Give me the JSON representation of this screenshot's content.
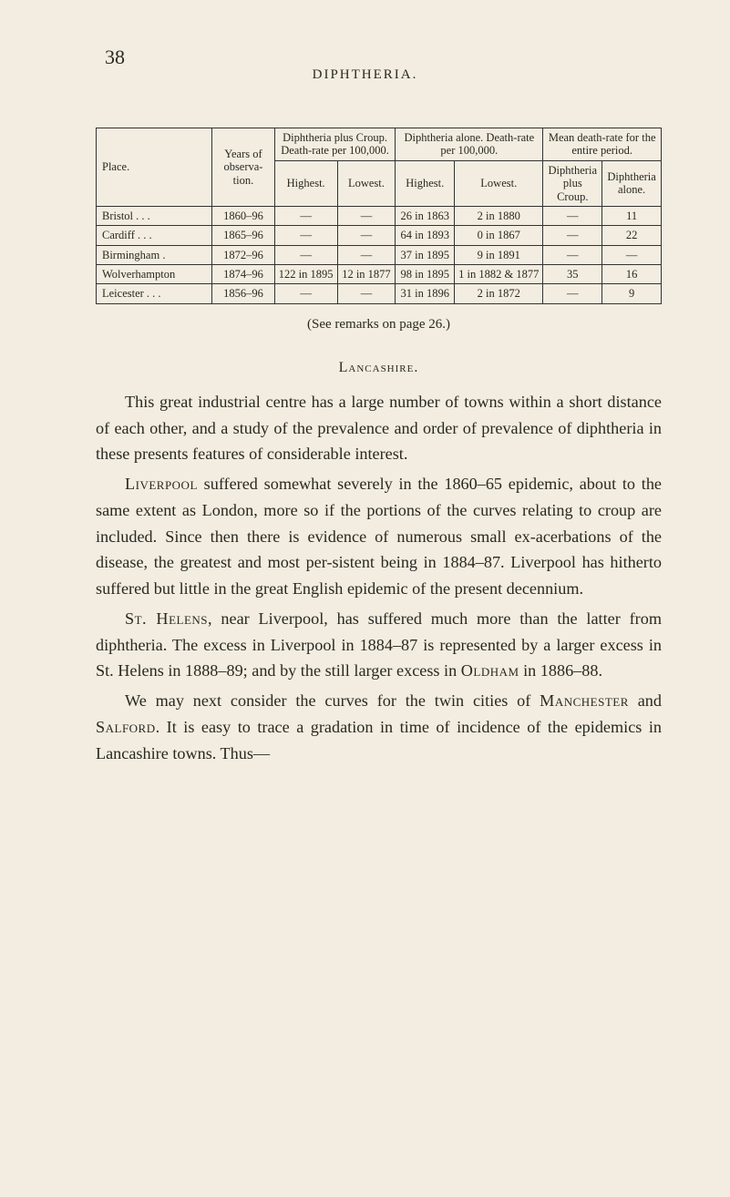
{
  "page_number": "38",
  "running_head": "DIPHTHERIA.",
  "table": {
    "headers": {
      "place": "Place.",
      "years": "Years of observa-tion.",
      "group_a": "Diphtheria plus Croup. Death-rate per 100,000.",
      "group_b": "Diphtheria alone. Death-rate per 100,000.",
      "group_c": "Mean death-rate for the entire period.",
      "highest": "Highest.",
      "lowest": "Lowest.",
      "c1": "Diphtheria plus Croup.",
      "c2": "Diphtheria alone."
    },
    "rows": [
      {
        "place": "Bristol . . .",
        "years": "1860–96",
        "a_hi": "—",
        "a_lo": "—",
        "b_hi": "26 in 1863",
        "b_lo": "2 in 1880",
        "c1": "—",
        "c2": "11"
      },
      {
        "place": "Cardiff . . .",
        "years": "1865–96",
        "a_hi": "—",
        "a_lo": "—",
        "b_hi": "64 in 1893",
        "b_lo": "0 in 1867",
        "c1": "—",
        "c2": "22"
      },
      {
        "place": "Birmingham .",
        "years": "1872–96",
        "a_hi": "—",
        "a_lo": "—",
        "b_hi": "37 in 1895",
        "b_lo": "9 in 1891",
        "c1": "—",
        "c2": "—"
      },
      {
        "place": "Wolverhampton",
        "years": "1874–96",
        "a_hi": "122 in 1895",
        "a_lo": "12 in 1877",
        "b_hi": "98 in 1895",
        "b_lo": "1 in 1882 & 1877",
        "c1": "35",
        "c2": "16"
      },
      {
        "place": "Leicester . . .",
        "years": "1856–96",
        "a_hi": "—",
        "a_lo": "—",
        "b_hi": "31 in 1896",
        "b_lo": "2 in 1872",
        "c1": "—",
        "c2": "9"
      }
    ]
  },
  "see_remarks": "(See remarks on page 26.)",
  "section_head": "Lancashire.",
  "paragraphs": {
    "p1_a": "This great industrial centre has a large number of towns within a short distance of each other, and a study of the prevalence and order of prevalence of diphtheria in these presents features of considerable interest.",
    "p2_sc1": "Liverpool",
    "p2_a": " suffered somewhat severely in the 1860–65 epidemic, about to the same extent as London, more so if the portions of the curves relating to croup are included. Since then there is evidence of numerous small ex-acerbations of the disease, the greatest and most per-sistent being in 1884–87. Liverpool has hitherto suffered but little in the great English epidemic of the present decennium.",
    "p3_sc1": "St. Helens",
    "p3_a": ", near Liverpool, has suffered much more than the latter from diphtheria. The excess in Liverpool in 1884–87 is represented by a larger excess in St. Helens in 1888–89; and by the still larger excess in ",
    "p3_sc2": "Oldham",
    "p3_b": " in 1886–88.",
    "p4_a": "We may next consider the curves for the twin cities of ",
    "p4_sc1": "Manchester",
    "p4_b": " and ",
    "p4_sc2": "Salford",
    "p4_c": ". It is easy to trace a gradation in time of incidence of the epidemics in Lancashire towns. Thus—"
  }
}
